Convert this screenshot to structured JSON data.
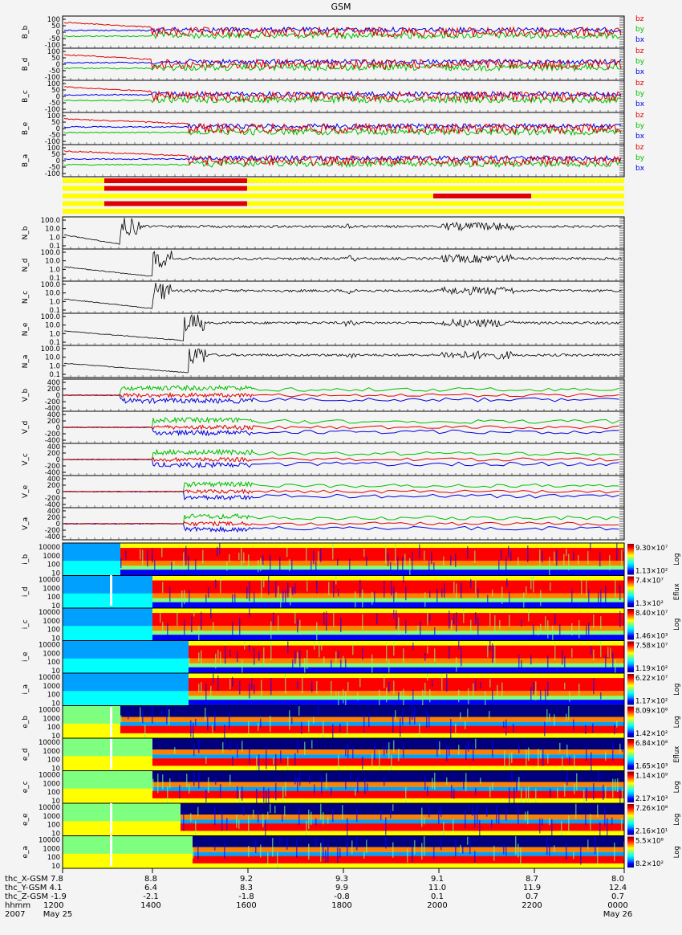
{
  "title": "GSM",
  "fgm_panels": [
    {
      "label": "B_b",
      "ticks": [
        "100",
        "50",
        "0",
        "-50",
        "-100"
      ]
    },
    {
      "label": "B_d",
      "ticks": [
        "100",
        "50",
        "0",
        "-50",
        "-100"
      ]
    },
    {
      "label": "B_c",
      "ticks": [
        "100",
        "50",
        "0",
        "-50",
        "-100"
      ]
    },
    {
      "label": "B_e",
      "ticks": [
        "100",
        "50",
        "0",
        "-50",
        "-100"
      ]
    },
    {
      "label": "B_a",
      "ticks": [
        "100",
        "50",
        "0",
        "-50",
        "-100"
      ]
    }
  ],
  "fgm_legend": [
    {
      "name": "bz",
      "color": "#e00000"
    },
    {
      "name": "by",
      "color": "#00c000"
    },
    {
      "name": "bx",
      "color": "#0000e0"
    }
  ],
  "density_panels": [
    {
      "label": "N_b",
      "ticks": [
        "100.0",
        "10.0",
        "1.0",
        "0.1"
      ]
    },
    {
      "label": "N_d",
      "ticks": [
        "100.0",
        "10.0",
        "1.0",
        "0.1"
      ]
    },
    {
      "label": "N_c",
      "ticks": [
        "100.0",
        "10.0",
        "1.0",
        "0.1"
      ]
    },
    {
      "label": "N_e",
      "ticks": [
        "100.0",
        "10.0",
        "1.0",
        "0.1"
      ]
    },
    {
      "label": "N_a",
      "ticks": [
        "100.0",
        "10.0",
        "1.0",
        "0.1"
      ]
    }
  ],
  "velocity_panels": [
    {
      "label": "V_b",
      "ticks": [
        "400",
        "200",
        "0",
        "-200",
        "-400"
      ]
    },
    {
      "label": "V_d",
      "ticks": [
        "400",
        "200",
        "0",
        "-200",
        "-400"
      ]
    },
    {
      "label": "V_c",
      "ticks": [
        "400",
        "200",
        "0",
        "-200",
        "-400"
      ]
    },
    {
      "label": "V_e",
      "ticks": [
        "400",
        "200",
        "0",
        "-200",
        "-400"
      ]
    },
    {
      "label": "V_a",
      "ticks": [
        "400",
        "200",
        "0",
        "-200",
        "-400"
      ]
    }
  ],
  "ion_spectra": [
    {
      "label": "i_b",
      "cb_top": "9.30×10⁷",
      "cb_bottom": "1.13×10²",
      "scale": "Log"
    },
    {
      "label": "i_d",
      "cb_top": "7.4×10⁷",
      "cb_bottom": "1.3×10²",
      "scale": "Eflux"
    },
    {
      "label": "i_c",
      "cb_top": "8.40×10⁷",
      "cb_bottom": "1.46×10³",
      "scale": "Log"
    },
    {
      "label": "i_e",
      "cb_top": "7.58×10⁷",
      "cb_bottom": "1.19×10²",
      "scale": ""
    },
    {
      "label": "i_a",
      "cb_top": "6.22×10⁷",
      "cb_bottom": "1.17×10²",
      "scale": "Log"
    }
  ],
  "electron_spectra": [
    {
      "label": "e_b",
      "cb_top": "8.09×10⁸",
      "cb_bottom": "1.42×10²",
      "scale": "Log"
    },
    {
      "label": "e_d",
      "cb_top": "6.84×10⁸",
      "cb_bottom": "1.65×10³",
      "scale": "Eflux"
    },
    {
      "label": "e_c",
      "cb_top": "1.14×10⁹",
      "cb_bottom": "2.17×10³",
      "scale": "Log"
    },
    {
      "label": "e_e",
      "cb_top": "7.26×10⁸",
      "cb_bottom": "2.16×10¹",
      "scale": "Log"
    },
    {
      "label": "e_a",
      "cb_top": "5.5×10⁸",
      "cb_bottom": "8.2×10²",
      "scale": "Log"
    }
  ],
  "spectra_ticks": [
    "10000",
    "1000",
    "100",
    "10"
  ],
  "mode_bars": {
    "bar_color": "#ffff00",
    "burst_color": "#e00000"
  },
  "footer": {
    "row_labels": [
      "thc_X-GSM",
      "thc_Y-GSM",
      "thc_Z-GSM",
      "hhmm",
      "2007"
    ],
    "first_values": [
      "7.8",
      "4.1",
      "-1.9",
      "1200",
      "May 25"
    ],
    "columns": [
      {
        "x": "8.8",
        "y": "6.4",
        "z": "-2.1",
        "t": "1400",
        "d": ""
      },
      {
        "x": "9.2",
        "y": "8.3",
        "z": "-1.8",
        "t": "1600",
        "d": ""
      },
      {
        "x": "9.3",
        "y": "9.9",
        "z": "-0.8",
        "t": "1800",
        "d": ""
      },
      {
        "x": "9.1",
        "y": "11.0",
        "z": "0.1",
        "t": "2000",
        "d": ""
      },
      {
        "x": "8.7",
        "y": "11.9",
        "z": "0.7",
        "t": "2200",
        "d": ""
      },
      {
        "x": "8.0",
        "y": "12.4",
        "z": "0.7",
        "t": "0000",
        "d": "May 26"
      }
    ]
  },
  "chart_data": {
    "type": "line",
    "title": "GSM",
    "x_ticks": [
      "1200",
      "1400",
      "1600",
      "1800",
      "2000",
      "2200",
      "0000"
    ],
    "xlabel": "hhmm",
    "series_colors": {
      "bz": "#e00000",
      "by": "#00c000",
      "bx": "#0000e0"
    },
    "fgm_ylim": [
      -100,
      100
    ],
    "density_ylim": [
      0.1,
      100
    ],
    "velocity_ylim": [
      -400,
      400
    ],
    "spectra_ylim": [
      10,
      10000
    ]
  }
}
